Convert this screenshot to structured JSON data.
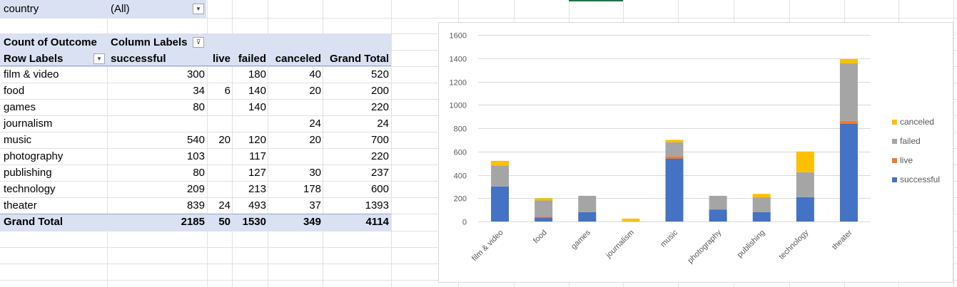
{
  "filter": {
    "label": "country",
    "value": "(All)"
  },
  "pivot": {
    "value_label": "Count of Outcome",
    "column_labels": "Column Labels",
    "row_labels": "Row Labels",
    "headers": [
      "successful",
      "live",
      "failed",
      "canceled",
      "Grand Total"
    ],
    "rows": [
      {
        "label": "film & video",
        "successful": "300",
        "live": "",
        "failed": "180",
        "canceled": "40",
        "total": "520"
      },
      {
        "label": "food",
        "successful": "34",
        "live": "6",
        "failed": "140",
        "canceled": "20",
        "total": "200"
      },
      {
        "label": "games",
        "successful": "80",
        "live": "",
        "failed": "140",
        "canceled": "",
        "total": "220"
      },
      {
        "label": "journalism",
        "successful": "",
        "live": "",
        "failed": "",
        "canceled": "24",
        "total": "24"
      },
      {
        "label": "music",
        "successful": "540",
        "live": "20",
        "failed": "120",
        "canceled": "20",
        "total": "700"
      },
      {
        "label": "photography",
        "successful": "103",
        "live": "",
        "failed": "117",
        "canceled": "",
        "total": "220"
      },
      {
        "label": "publishing",
        "successful": "80",
        "live": "",
        "failed": "127",
        "canceled": "30",
        "total": "237"
      },
      {
        "label": "technology",
        "successful": "209",
        "live": "",
        "failed": "213",
        "canceled": "178",
        "total": "600"
      },
      {
        "label": "theater",
        "successful": "839",
        "live": "24",
        "failed": "493",
        "canceled": "37",
        "total": "1393"
      }
    ],
    "grand_total": {
      "label": "Grand Total",
      "successful": "2185",
      "live": "50",
      "failed": "1530",
      "canceled": "349",
      "total": "4114"
    }
  },
  "colors": {
    "successful": "#4472c4",
    "live": "#ed7d31",
    "failed": "#a5a5a5",
    "canceled": "#ffc000",
    "header_fill": "#d9e1f2",
    "filter_fill": "#d9e1f2",
    "gridline": "#d9d9d9"
  },
  "chart_data": {
    "type": "bar",
    "stacked": true,
    "categories": [
      "film & video",
      "food",
      "games",
      "journalism",
      "music",
      "photography",
      "publishing",
      "technology",
      "theater"
    ],
    "series": [
      {
        "name": "successful",
        "values": [
          300,
          34,
          80,
          0,
          540,
          103,
          80,
          209,
          839
        ]
      },
      {
        "name": "live",
        "values": [
          0,
          6,
          0,
          0,
          20,
          0,
          0,
          0,
          24
        ]
      },
      {
        "name": "failed",
        "values": [
          180,
          140,
          140,
          0,
          120,
          117,
          127,
          213,
          493
        ]
      },
      {
        "name": "canceled",
        "values": [
          40,
          20,
          0,
          24,
          20,
          0,
          30,
          178,
          37
        ]
      }
    ],
    "y_ticks": [
      "0",
      "200",
      "400",
      "600",
      "800",
      "1000",
      "1200",
      "1400",
      "1600"
    ],
    "ylim": [
      0,
      1600
    ],
    "grid": true,
    "legend_position": "right",
    "legend_order": [
      "canceled",
      "failed",
      "live",
      "successful"
    ],
    "title": "",
    "xlabel": "",
    "ylabel": ""
  }
}
